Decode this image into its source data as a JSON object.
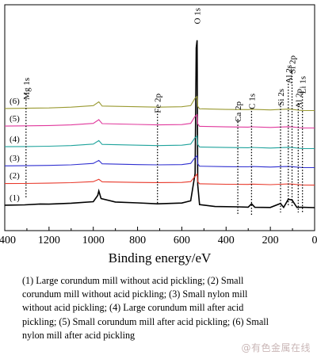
{
  "chart_data": {
    "type": "line",
    "title": "",
    "xlabel": "Binding energy/eV",
    "ylabel": "",
    "xlim": [
      1400,
      0
    ],
    "x_reversed": true,
    "ticks": [
      1400,
      1200,
      1000,
      800,
      600,
      400,
      200,
      0
    ],
    "grid": false,
    "y_units": "arbitrary (stacked spectra)",
    "peak_positions": [
      1304,
      975,
      710,
      531,
      347,
      285,
      154,
      119,
      102,
      74,
      55
    ],
    "series": [
      {
        "name": "(1)",
        "color": "#000000",
        "x": [
          1400,
          1310,
          1240,
          1200,
          1100,
          1000,
          980,
          975,
          965,
          900,
          800,
          710,
          600,
          560,
          540,
          535,
          531,
          528,
          520,
          450,
          347,
          300,
          285,
          270,
          200,
          154,
          140,
          119,
          102,
          80,
          74,
          55,
          0
        ],
        "y": [
          0.32,
          0.36,
          0.48,
          0.46,
          0.58,
          0.78,
          1.6,
          2.2,
          1.2,
          0.74,
          0.62,
          0.5,
          0.6,
          0.9,
          4.5,
          21.0,
          22.0,
          3.0,
          0.4,
          0.15,
          0.1,
          0.06,
          0.5,
          0.04,
          0.02,
          0.55,
          0.03,
          1.1,
          1.0,
          0.02,
          0.05,
          0.04,
          0.0
        ]
      },
      {
        "name": "(2)",
        "color": "#e8392b",
        "x": [
          1400,
          1310,
          1200,
          1100,
          1000,
          975,
          960,
          800,
          710,
          600,
          560,
          540,
          531,
          528,
          520,
          400,
          300,
          285,
          200,
          154,
          119,
          102,
          74,
          55,
          0
        ],
        "y": [
          0.25,
          0.26,
          0.3,
          0.36,
          0.5,
          0.8,
          0.48,
          0.4,
          0.38,
          0.4,
          0.5,
          1.2,
          1.5,
          0.5,
          0.22,
          0.16,
          0.14,
          0.18,
          0.1,
          0.16,
          0.2,
          0.18,
          0.1,
          0.06,
          0.04
        ]
      },
      {
        "name": "(3)",
        "color": "#2f2fd0",
        "x": [
          1400,
          1310,
          1200,
          1100,
          1000,
          975,
          960,
          800,
          710,
          600,
          560,
          540,
          531,
          528,
          520,
          400,
          300,
          285,
          200,
          154,
          119,
          102,
          74,
          55,
          0
        ],
        "y": [
          0.28,
          0.3,
          0.34,
          0.42,
          0.6,
          1.0,
          0.55,
          0.45,
          0.42,
          0.45,
          0.6,
          1.4,
          1.6,
          0.55,
          0.24,
          0.18,
          0.16,
          0.2,
          0.12,
          0.18,
          0.2,
          0.18,
          0.1,
          0.06,
          0.05
        ]
      },
      {
        "name": "(4)",
        "color": "#1fa39c",
        "x": [
          1400,
          1310,
          1200,
          1100,
          1000,
          975,
          960,
          800,
          710,
          600,
          560,
          540,
          531,
          528,
          520,
          400,
          300,
          285,
          200,
          154,
          119,
          102,
          74,
          55,
          0
        ],
        "y": [
          0.3,
          0.32,
          0.36,
          0.45,
          0.65,
          1.1,
          0.6,
          0.5,
          0.45,
          0.5,
          0.65,
          1.5,
          1.7,
          0.6,
          0.26,
          0.2,
          0.17,
          0.21,
          0.13,
          0.18,
          0.22,
          0.2,
          0.1,
          0.06,
          0.05
        ]
      },
      {
        "name": "(5)",
        "color": "#e0389c",
        "x": [
          1400,
          1310,
          1200,
          1100,
          1000,
          975,
          960,
          800,
          710,
          600,
          560,
          540,
          531,
          528,
          520,
          400,
          300,
          285,
          200,
          154,
          119,
          102,
          74,
          55,
          0
        ],
        "y": [
          0.3,
          0.33,
          0.38,
          0.46,
          0.66,
          1.15,
          0.62,
          0.52,
          0.46,
          0.5,
          0.66,
          1.6,
          1.8,
          0.6,
          0.27,
          0.2,
          0.17,
          0.21,
          0.13,
          0.18,
          0.22,
          0.2,
          0.1,
          0.06,
          0.05
        ]
      },
      {
        "name": "(6)",
        "color": "#9a9a32",
        "x": [
          1400,
          1310,
          1200,
          1100,
          1000,
          975,
          960,
          800,
          710,
          600,
          560,
          540,
          531,
          528,
          520,
          400,
          300,
          285,
          200,
          154,
          119,
          102,
          74,
          55,
          0
        ],
        "y": [
          0.32,
          0.35,
          0.4,
          0.5,
          0.7,
          1.2,
          0.65,
          0.55,
          0.5,
          0.55,
          0.7,
          1.7,
          1.9,
          0.6,
          0.28,
          0.2,
          0.18,
          0.22,
          0.14,
          0.2,
          0.24,
          0.22,
          0.1,
          0.06,
          0.05
        ]
      }
    ],
    "annotations": [
      {
        "text": "Mg 1s",
        "x": 1304
      },
      {
        "text": "Fe 2p",
        "x": 710
      },
      {
        "text": "O 1s",
        "x": 531
      },
      {
        "text": "Ca 2p",
        "x": 347
      },
      {
        "text": "C 1s",
        "x": 285
      },
      {
        "text": "Si 2s",
        "x": 154
      },
      {
        "text": "Al 2s",
        "x": 119
      },
      {
        "text": "Si 2p",
        "x": 102
      },
      {
        "text": "Al 2p",
        "x": 74
      },
      {
        "text": "Li 1s",
        "x": 55
      }
    ]
  },
  "caption": [
    "(1) Large corundum mill without acid pickling; (2) Small",
    "corundum mill without acid pickling; (3) Small nylon mill",
    "without acid pickling; (4) Large corundum mill after acid",
    "pickling; (5) Small corundum mill after acid pickling; (6) Small",
    "nylon mill after acid pickling"
  ],
  "watermark": "@有色金属在线"
}
